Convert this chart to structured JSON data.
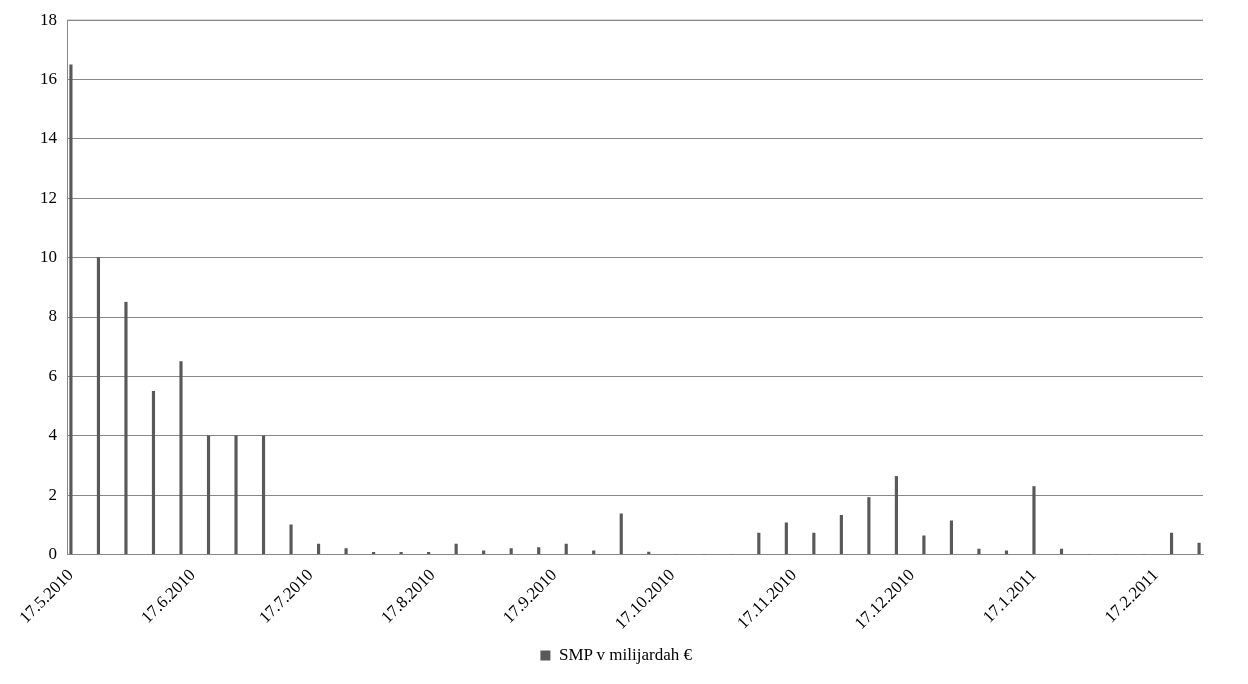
{
  "chart_data": {
    "type": "bar",
    "x": [
      "2010-05-17",
      "2010-05-24",
      "2010-05-31",
      "2010-06-07",
      "2010-06-14",
      "2010-06-21",
      "2010-06-28",
      "2010-07-05",
      "2010-07-12",
      "2010-07-19",
      "2010-07-26",
      "2010-08-02",
      "2010-08-09",
      "2010-08-16",
      "2010-08-23",
      "2010-08-30",
      "2010-09-06",
      "2010-09-13",
      "2010-09-20",
      "2010-09-27",
      "2010-10-04",
      "2010-10-11",
      "2010-10-18",
      "2010-10-25",
      "2010-11-01",
      "2010-11-08",
      "2010-11-15",
      "2010-11-22",
      "2010-11-29",
      "2010-12-06",
      "2010-12-13",
      "2010-12-20",
      "2010-12-27",
      "2011-01-03",
      "2011-01-10",
      "2011-01-17",
      "2011-01-24",
      "2011-01-31",
      "2011-02-07",
      "2011-02-14",
      "2011-02-21",
      "2011-02-28"
    ],
    "series": [
      {
        "name": "SMP v milijardah €",
        "color": "#595959",
        "values": [
          16.5,
          10,
          8.5,
          5.5,
          6.5,
          4,
          4,
          4,
          1,
          0.35,
          0.2,
          0.07,
          0.07,
          0.07,
          0.35,
          0.12,
          0.2,
          0.23,
          0.35,
          0.12,
          1.37,
          0.08,
          0,
          0,
          0,
          0.72,
          1.07,
          0.72,
          1.32,
          1.92,
          2.63,
          0.63,
          1.13,
          0.18,
          0.12,
          2.29,
          0.18,
          0,
          0,
          0,
          0.72,
          0.38
        ]
      }
    ],
    "xlim": [
      "2010-05-16",
      "2011-03-01"
    ],
    "xticks": [
      {
        "value": "2010-05-17",
        "label": "17.5.2010"
      },
      {
        "value": "2010-06-17",
        "label": "17.6.2010"
      },
      {
        "value": "2010-07-17",
        "label": "17.7.2010"
      },
      {
        "value": "2010-08-17",
        "label": "17.8.2010"
      },
      {
        "value": "2010-09-17",
        "label": "17.9.2010"
      },
      {
        "value": "2010-10-17",
        "label": "17.10.2010"
      },
      {
        "value": "2010-11-17",
        "label": "17.11.2010"
      },
      {
        "value": "2010-12-17",
        "label": "17.12.2010"
      },
      {
        "value": "2011-01-17",
        "label": "17.1.2011"
      },
      {
        "value": "2011-02-17",
        "label": "17.2.2011"
      }
    ],
    "ylim": [
      0,
      18
    ],
    "yticks": [
      0,
      2,
      4,
      6,
      8,
      10,
      12,
      14,
      16,
      18
    ],
    "grid": "y",
    "legend": "bottom"
  }
}
